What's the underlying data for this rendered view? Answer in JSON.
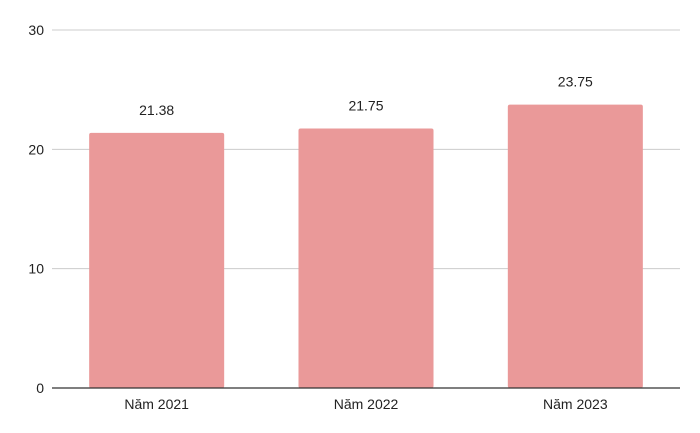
{
  "chart_data": {
    "type": "bar",
    "categories": [
      "Năm 2021",
      "Năm 2022",
      "Năm 2023"
    ],
    "values": [
      21.38,
      21.75,
      23.75
    ],
    "data_labels": [
      "21.38",
      "21.75",
      "23.75"
    ],
    "yticks": [
      "0",
      "10",
      "20",
      "30"
    ],
    "ylim": [
      0,
      30
    ],
    "grid": true,
    "legend": "none",
    "colors": {
      "bar": "#ea9999",
      "grid": "#cccccc",
      "axis": "#333333",
      "text": "#222222"
    }
  }
}
